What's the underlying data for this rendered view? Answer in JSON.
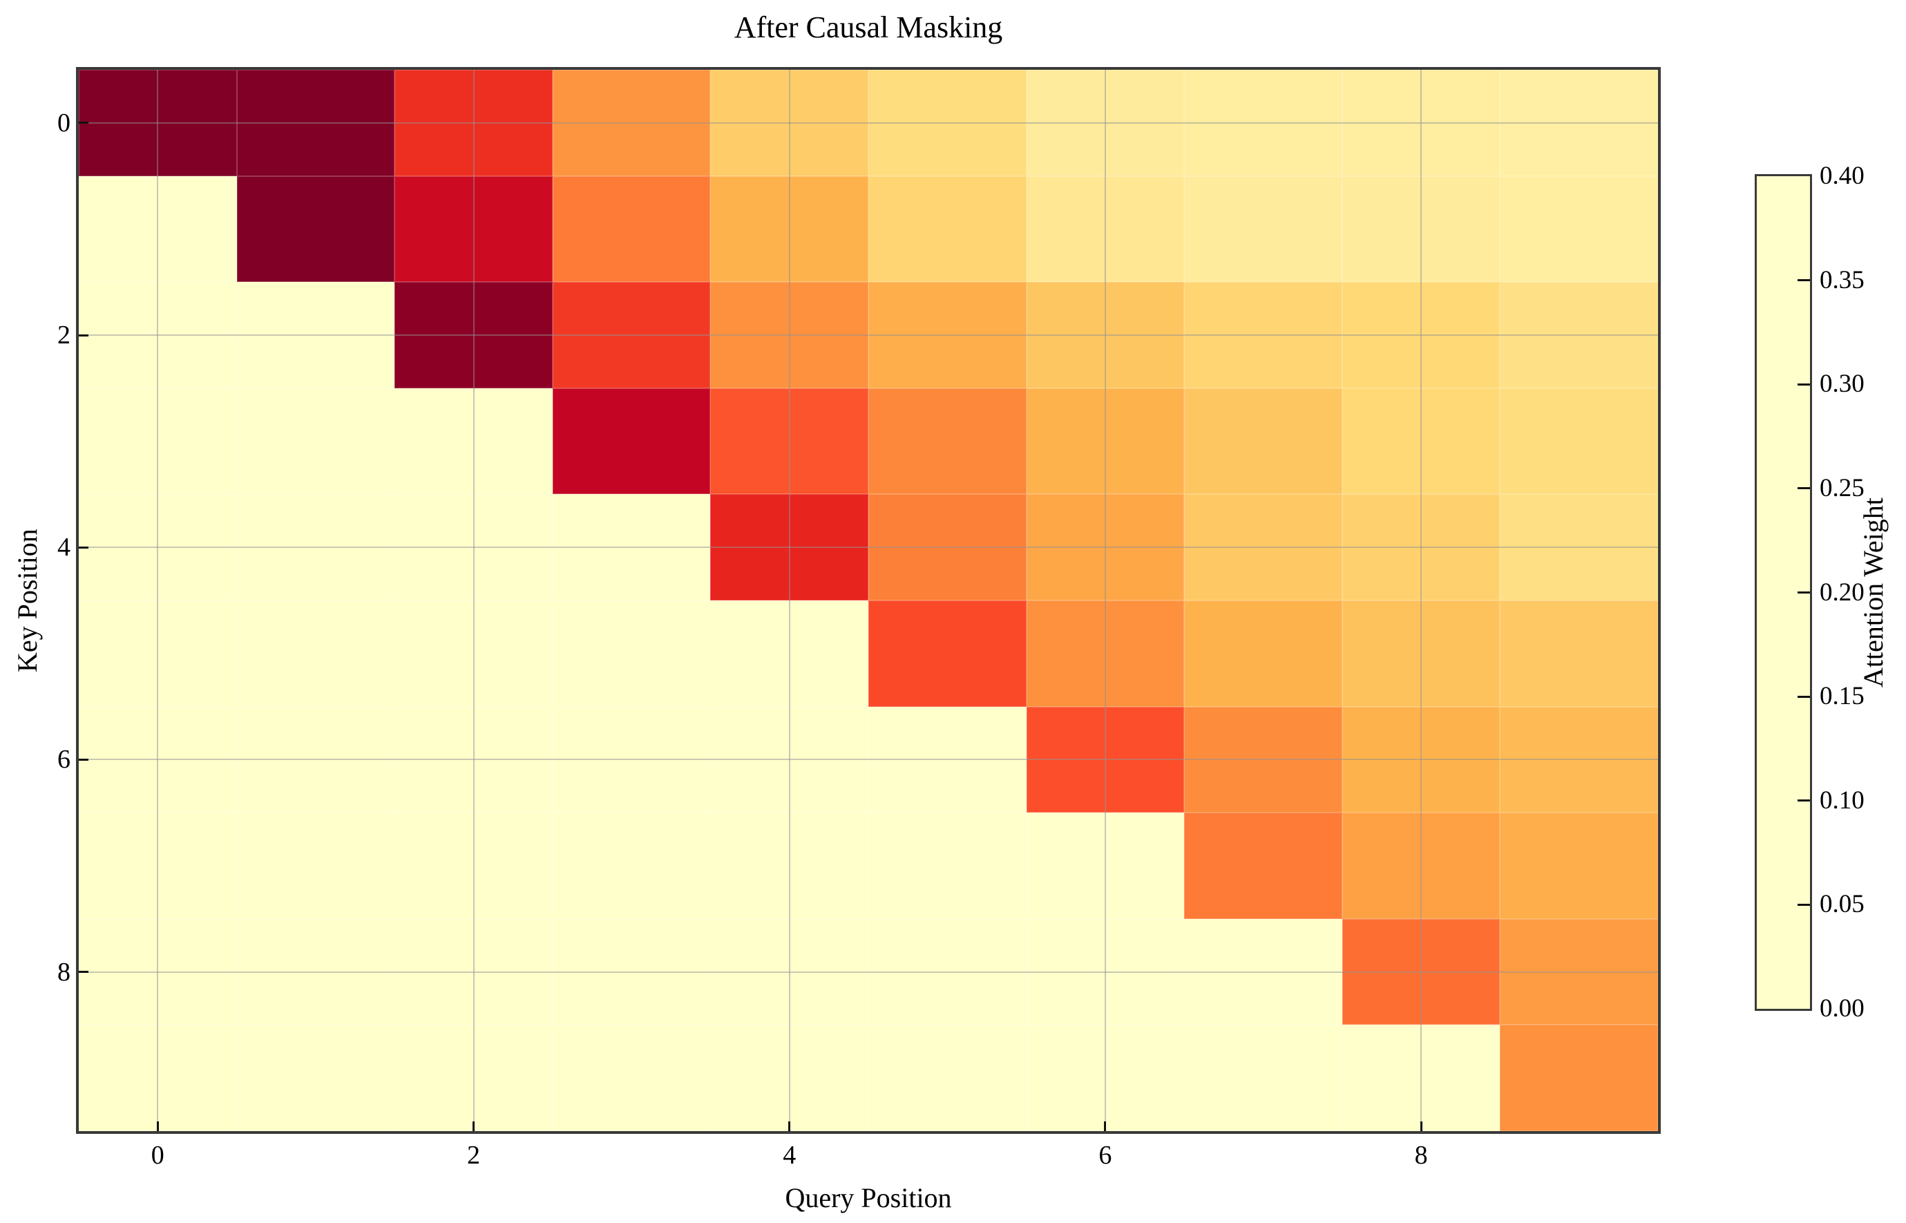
{
  "figure": {
    "background_color": "#ffffff",
    "spine_color": "#3a3a3a",
    "gridline_color": "rgba(145,145,145,0.5)",
    "tick_color": "#111111"
  },
  "chart_data": {
    "type": "heatmap",
    "title": "After Causal Masking",
    "xlabel": "Query Position",
    "ylabel": "Key Position",
    "x_ticks": [
      0,
      2,
      4,
      6,
      8
    ],
    "y_ticks": [
      0,
      2,
      4,
      6,
      8
    ],
    "n_rows": 10,
    "n_cols": 10,
    "grid": true,
    "colormap": "YlOrRd",
    "vmin": 0.0,
    "vmax": 0.4,
    "colormap_stops": [
      {
        "t": 0.0,
        "color": "#ffffcc"
      },
      {
        "t": 0.125,
        "color": "#ffeda0"
      },
      {
        "t": 0.25,
        "color": "#fed976"
      },
      {
        "t": 0.375,
        "color": "#feb24c"
      },
      {
        "t": 0.5,
        "color": "#fd8d3c"
      },
      {
        "t": 0.625,
        "color": "#fc4e2a"
      },
      {
        "t": 0.75,
        "color": "#e31a1c"
      },
      {
        "t": 0.875,
        "color": "#bd0026"
      },
      {
        "t": 1.0,
        "color": "#800026"
      }
    ],
    "colorbar_label": "Attention Weight",
    "colorbar_ticks": [
      0.0,
      0.05,
      0.1,
      0.15,
      0.2,
      0.25,
      0.3,
      0.35,
      0.4
    ],
    "matrix": [
      [
        1.0,
        0.52,
        0.28,
        0.19,
        0.115,
        0.09,
        0.055,
        0.05,
        0.05,
        0.045
      ],
      [
        0,
        0.48,
        0.33,
        0.215,
        0.15,
        0.105,
        0.065,
        0.055,
        0.055,
        0.05
      ],
      [
        0,
        0,
        0.39,
        0.27,
        0.195,
        0.155,
        0.125,
        0.105,
        0.1,
        0.08
      ],
      [
        0,
        0,
        0,
        0.34,
        0.245,
        0.205,
        0.15,
        0.125,
        0.1,
        0.09
      ],
      [
        0,
        0,
        0,
        0,
        0.29,
        0.21,
        0.165,
        0.12,
        0.11,
        0.085
      ],
      [
        0,
        0,
        0,
        0,
        0,
        0.255,
        0.195,
        0.15,
        0.13,
        0.12
      ],
      [
        0,
        0,
        0,
        0,
        0,
        0,
        0.25,
        0.2,
        0.15,
        0.14
      ],
      [
        0,
        0,
        0,
        0,
        0,
        0,
        0,
        0.215,
        0.175,
        0.155
      ],
      [
        0,
        0,
        0,
        0,
        0,
        0,
        0,
        0,
        0.225,
        0.18
      ],
      [
        0,
        0,
        0,
        0,
        0,
        0,
        0,
        0,
        0,
        0.195
      ]
    ]
  }
}
